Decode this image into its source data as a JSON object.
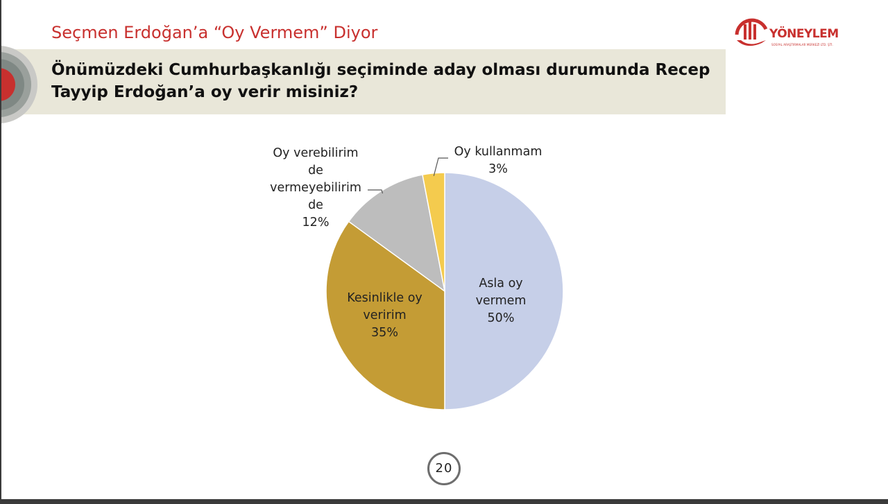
{
  "header": {
    "title": "Seçmen Erdoğan’a “Oy Vermem” Diyor",
    "question": "Önümüzdeki Cumhurbaşkanlığı seçiminde aday olması durumunda Recep Tayyip Erdoğan’a oy verir misiniz?"
  },
  "logo": {
    "name": "YÖNEYLEM",
    "tagline": "SOSYAL ARAŞTIRMALAR MERKEZİ LTD. ŞTİ."
  },
  "chart_data": {
    "type": "pie",
    "start": "12 o'clock, clockwise",
    "slices": [
      {
        "label_lines": [
          "Asla oy",
          "vermem"
        ],
        "value": 50,
        "value_label": "50%",
        "color": "#c6cfe8"
      },
      {
        "label_lines": [
          "Kesinlikle oy",
          "veririm"
        ],
        "value": 35,
        "value_label": "35%",
        "color": "#c49c35"
      },
      {
        "label_lines": [
          "Oy verebilirim",
          "de",
          "vermeyebilirim",
          "de"
        ],
        "value": 12,
        "value_label": "12%",
        "color": "#bdbdbd"
      },
      {
        "label_lines": [
          "Oy kullanmam"
        ],
        "value": 3,
        "value_label": "3%",
        "color": "#f4cb4e"
      }
    ]
  },
  "page_number": "20"
}
